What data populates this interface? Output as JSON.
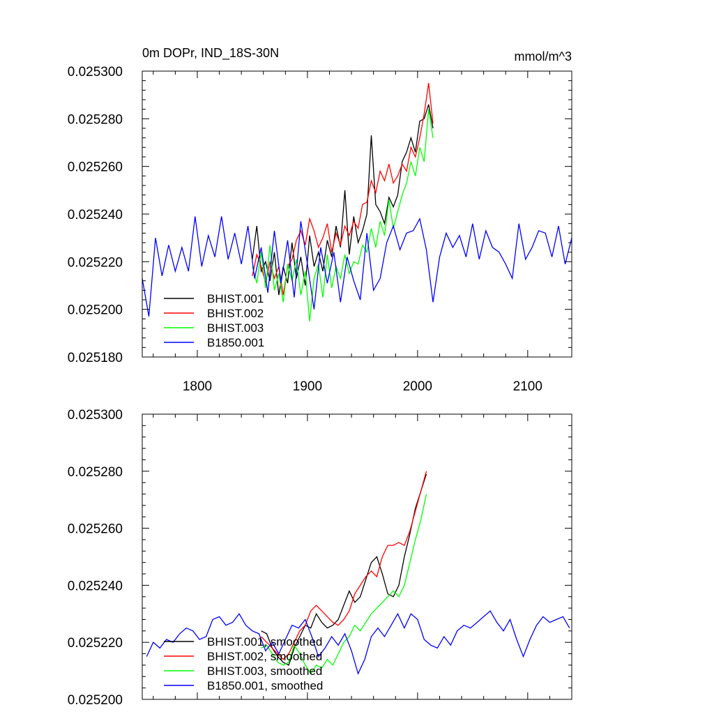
{
  "chart_data": [
    {
      "type": "line",
      "title_left": "0m DOPr, IND_18S-30N",
      "title_right": "mmol/m^3",
      "xlabel": "",
      "ylabel": "",
      "xlim": [
        1750,
        2140
      ],
      "ylim": [
        0.02518,
        0.0253
      ],
      "x_ticks": [
        1800,
        1900,
        2000,
        2100
      ],
      "y_ticks": [
        "0.025300",
        "0.025280",
        "0.025260",
        "0.025240",
        "0.025220",
        "0.025200",
        "0.025180"
      ],
      "legend_position": "bottom-left",
      "series": [
        {
          "name": "BHIST.001",
          "color": "#000000",
          "x": [
            1850,
            1854,
            1858,
            1862,
            1866,
            1870,
            1874,
            1878,
            1882,
            1886,
            1890,
            1894,
            1898,
            1902,
            1906,
            1910,
            1914,
            1918,
            1922,
            1926,
            1930,
            1934,
            1938,
            1942,
            1946,
            1950,
            1954,
            1958,
            1962,
            1966,
            1970,
            1974,
            1978,
            1982,
            1986,
            1990,
            1994,
            1998,
            2002,
            2006,
            2010,
            2014
          ],
          "y": [
            0.025221,
            0.025235,
            0.025216,
            0.02522,
            0.025212,
            0.025224,
            0.025206,
            0.025218,
            0.025211,
            0.025228,
            0.025213,
            0.025222,
            0.02521,
            0.025231,
            0.025218,
            0.025224,
            0.025216,
            0.025229,
            0.025222,
            0.025235,
            0.025226,
            0.02525,
            0.025223,
            0.025239,
            0.025228,
            0.025233,
            0.02524,
            0.025273,
            0.025244,
            0.025241,
            0.025236,
            0.025247,
            0.025243,
            0.025248,
            0.025262,
            0.025266,
            0.025272,
            0.025266,
            0.025279,
            0.02528,
            0.025286,
            0.025276
          ]
        },
        {
          "name": "BHIST.002",
          "color": "#ff0000",
          "x": [
            1850,
            1854,
            1858,
            1862,
            1866,
            1870,
            1874,
            1878,
            1882,
            1886,
            1890,
            1894,
            1898,
            1902,
            1906,
            1910,
            1914,
            1918,
            1922,
            1926,
            1930,
            1934,
            1938,
            1942,
            1946,
            1950,
            1954,
            1958,
            1962,
            1966,
            1970,
            1974,
            1978,
            1982,
            1986,
            1990,
            1994,
            1998,
            2002,
            2006,
            2010,
            2014
          ],
          "y": [
            0.025214,
            0.025223,
            0.025218,
            0.025211,
            0.02522,
            0.025213,
            0.025218,
            0.025206,
            0.025218,
            0.025221,
            0.025229,
            0.025233,
            0.025227,
            0.025238,
            0.025233,
            0.025226,
            0.02523,
            0.025236,
            0.025224,
            0.025232,
            0.025227,
            0.025235,
            0.025231,
            0.025237,
            0.025234,
            0.025244,
            0.025245,
            0.025254,
            0.025249,
            0.025258,
            0.025254,
            0.025261,
            0.025253,
            0.025256,
            0.025261,
            0.025258,
            0.025268,
            0.025264,
            0.025272,
            0.025282,
            0.025295,
            0.025278
          ]
        },
        {
          "name": "BHIST.003",
          "color": "#00ff00",
          "x": [
            1850,
            1854,
            1858,
            1862,
            1866,
            1870,
            1874,
            1878,
            1882,
            1886,
            1890,
            1894,
            1898,
            1902,
            1906,
            1910,
            1914,
            1918,
            1922,
            1926,
            1930,
            1934,
            1938,
            1942,
            1946,
            1950,
            1954,
            1958,
            1962,
            1966,
            1970,
            1974,
            1978,
            1982,
            1986,
            1990,
            1994,
            1998,
            2002,
            2006,
            2010,
            2014
          ],
          "y": [
            0.025218,
            0.025211,
            0.025224,
            0.025209,
            0.025227,
            0.025208,
            0.025215,
            0.025203,
            0.025219,
            0.025212,
            0.025221,
            0.025206,
            0.025216,
            0.025195,
            0.025213,
            0.025219,
            0.025205,
            0.025223,
            0.025209,
            0.025218,
            0.025213,
            0.025223,
            0.025215,
            0.02522,
            0.025219,
            0.025227,
            0.025224,
            0.025234,
            0.025226,
            0.025237,
            0.025231,
            0.025246,
            0.025234,
            0.025241,
            0.025248,
            0.025253,
            0.025262,
            0.025256,
            0.025268,
            0.025262,
            0.025284,
            0.025272
          ]
        },
        {
          "name": "B1850.001",
          "color": "#0000ff",
          "x": [
            1750,
            1756,
            1762,
            1768,
            1774,
            1780,
            1786,
            1792,
            1798,
            1804,
            1810,
            1816,
            1822,
            1828,
            1834,
            1840,
            1846,
            1852,
            1858,
            1864,
            1870,
            1876,
            1882,
            1888,
            1894,
            1900,
            1906,
            1912,
            1918,
            1924,
            1930,
            1936,
            1942,
            1948,
            1954,
            1960,
            1966,
            1972,
            1978,
            1984,
            1990,
            1996,
            2002,
            2008,
            2014,
            2020,
            2026,
            2032,
            2038,
            2044,
            2050,
            2056,
            2062,
            2068,
            2074,
            2080,
            2086,
            2092,
            2098,
            2104,
            2110,
            2116,
            2122,
            2128,
            2134,
            2140
          ],
          "y": [
            0.025213,
            0.025197,
            0.02523,
            0.025214,
            0.025227,
            0.025216,
            0.025226,
            0.025216,
            0.025239,
            0.025218,
            0.025231,
            0.025222,
            0.025239,
            0.025221,
            0.025232,
            0.025219,
            0.025235,
            0.025213,
            0.025226,
            0.025207,
            0.025233,
            0.025211,
            0.025229,
            0.025205,
            0.025237,
            0.025219,
            0.0252,
            0.025226,
            0.025211,
            0.025224,
            0.025203,
            0.025222,
            0.025212,
            0.025204,
            0.025232,
            0.025208,
            0.025213,
            0.025228,
            0.025235,
            0.025225,
            0.025232,
            0.025233,
            0.025238,
            0.025225,
            0.025203,
            0.025222,
            0.025232,
            0.025226,
            0.025231,
            0.025222,
            0.025236,
            0.025221,
            0.025233,
            0.025226,
            0.025224,
            0.025219,
            0.025213,
            0.025236,
            0.025221,
            0.025226,
            0.025233,
            0.025232,
            0.025222,
            0.025235,
            0.025219,
            0.02523
          ]
        }
      ]
    },
    {
      "type": "line",
      "title_left": "",
      "title_right": "",
      "xlabel": "",
      "ylabel": "",
      "xlim": [
        1750,
        2140
      ],
      "ylim": [
        0.0252,
        0.0253
      ],
      "x_ticks": [
        1800,
        1900,
        2000,
        2100
      ],
      "y_ticks": [
        "0.025300",
        "0.025280",
        "0.025260",
        "0.025240",
        "0.025220",
        "0.025200"
      ],
      "legend_position": "bottom-left",
      "series": [
        {
          "name": "BHIST.001, smoothed",
          "color": "#000000",
          "x": [
            1858,
            1863,
            1868,
            1873,
            1878,
            1883,
            1888,
            1893,
            1898,
            1903,
            1908,
            1913,
            1918,
            1923,
            1928,
            1933,
            1938,
            1943,
            1948,
            1953,
            1958,
            1963,
            1968,
            1973,
            1978,
            1983,
            1988,
            1993,
            1998,
            2003,
            2008
          ],
          "y": [
            0.025224,
            0.025223,
            0.025218,
            0.025215,
            0.025213,
            0.025212,
            0.025218,
            0.025222,
            0.025226,
            0.025225,
            0.02523,
            0.025227,
            0.025225,
            0.025226,
            0.025228,
            0.025233,
            0.025238,
            0.025234,
            0.025236,
            0.025242,
            0.025248,
            0.02525,
            0.025244,
            0.025237,
            0.025236,
            0.02524,
            0.02525,
            0.025258,
            0.025267,
            0.025273,
            0.025279
          ]
        },
        {
          "name": "BHIST.002, smoothed",
          "color": "#ff0000",
          "x": [
            1858,
            1863,
            1868,
            1873,
            1878,
            1883,
            1888,
            1893,
            1898,
            1903,
            1908,
            1913,
            1918,
            1923,
            1928,
            1933,
            1938,
            1943,
            1948,
            1953,
            1958,
            1963,
            1968,
            1973,
            1978,
            1983,
            1988,
            1993,
            1998,
            2003,
            2008
          ],
          "y": [
            0.025222,
            0.02522,
            0.025218,
            0.025216,
            0.025214,
            0.025216,
            0.02522,
            0.025224,
            0.025226,
            0.025231,
            0.025233,
            0.025231,
            0.025229,
            0.025227,
            0.025226,
            0.025228,
            0.025231,
            0.025237,
            0.02524,
            0.025243,
            0.025245,
            0.025243,
            0.02525,
            0.025254,
            0.025254,
            0.025255,
            0.025254,
            0.025259,
            0.025266,
            0.025273,
            0.02528
          ]
        },
        {
          "name": "BHIST.003, smoothed",
          "color": "#00ff00",
          "x": [
            1858,
            1863,
            1868,
            1873,
            1878,
            1883,
            1888,
            1893,
            1898,
            1903,
            1908,
            1913,
            1918,
            1923,
            1928,
            1933,
            1938,
            1943,
            1948,
            1953,
            1958,
            1963,
            1968,
            1973,
            1978,
            1983,
            1988,
            1993,
            1998,
            2003,
            2008
          ],
          "y": [
            0.025218,
            0.025219,
            0.025216,
            0.025213,
            0.025212,
            0.025213,
            0.025219,
            0.025216,
            0.025212,
            0.025209,
            0.025212,
            0.025211,
            0.025214,
            0.025212,
            0.025216,
            0.02522,
            0.025222,
            0.025226,
            0.025224,
            0.025227,
            0.02523,
            0.025232,
            0.025234,
            0.025236,
            0.025238,
            0.025236,
            0.02524,
            0.025248,
            0.025256,
            0.025263,
            0.025272
          ]
        },
        {
          "name": "B1850.001, smoothed",
          "color": "#0000ff",
          "x": [
            1754,
            1760,
            1766,
            1772,
            1778,
            1784,
            1790,
            1796,
            1802,
            1808,
            1814,
            1820,
            1826,
            1832,
            1838,
            1844,
            1850,
            1856,
            1862,
            1868,
            1874,
            1880,
            1886,
            1892,
            1898,
            1904,
            1910,
            1916,
            1922,
            1928,
            1934,
            1940,
            1946,
            1952,
            1958,
            1964,
            1970,
            1976,
            1982,
            1988,
            1994,
            2000,
            2006,
            2012,
            2018,
            2024,
            2030,
            2036,
            2042,
            2048,
            2054,
            2060,
            2066,
            2072,
            2078,
            2084,
            2090,
            2096,
            2102,
            2108,
            2114,
            2120,
            2126,
            2132,
            2138
          ],
          "y": [
            0.025215,
            0.02522,
            0.025218,
            0.025221,
            0.02522,
            0.025223,
            0.025225,
            0.025224,
            0.025221,
            0.025222,
            0.025228,
            0.025229,
            0.025226,
            0.025227,
            0.02523,
            0.025226,
            0.025224,
            0.025223,
            0.025217,
            0.02522,
            0.025216,
            0.025221,
            0.025226,
            0.025225,
            0.025228,
            0.025222,
            0.025215,
            0.025218,
            0.025222,
            0.025219,
            0.025223,
            0.025217,
            0.025209,
            0.025214,
            0.025222,
            0.025225,
            0.025222,
            0.025226,
            0.02523,
            0.025225,
            0.02523,
            0.025228,
            0.025221,
            0.025219,
            0.025218,
            0.025222,
            0.025219,
            0.025224,
            0.025226,
            0.025225,
            0.025227,
            0.025229,
            0.025231,
            0.025227,
            0.025224,
            0.025228,
            0.025221,
            0.025215,
            0.025221,
            0.025226,
            0.025229,
            0.025227,
            0.025228,
            0.025229,
            0.025225
          ]
        }
      ]
    }
  ]
}
